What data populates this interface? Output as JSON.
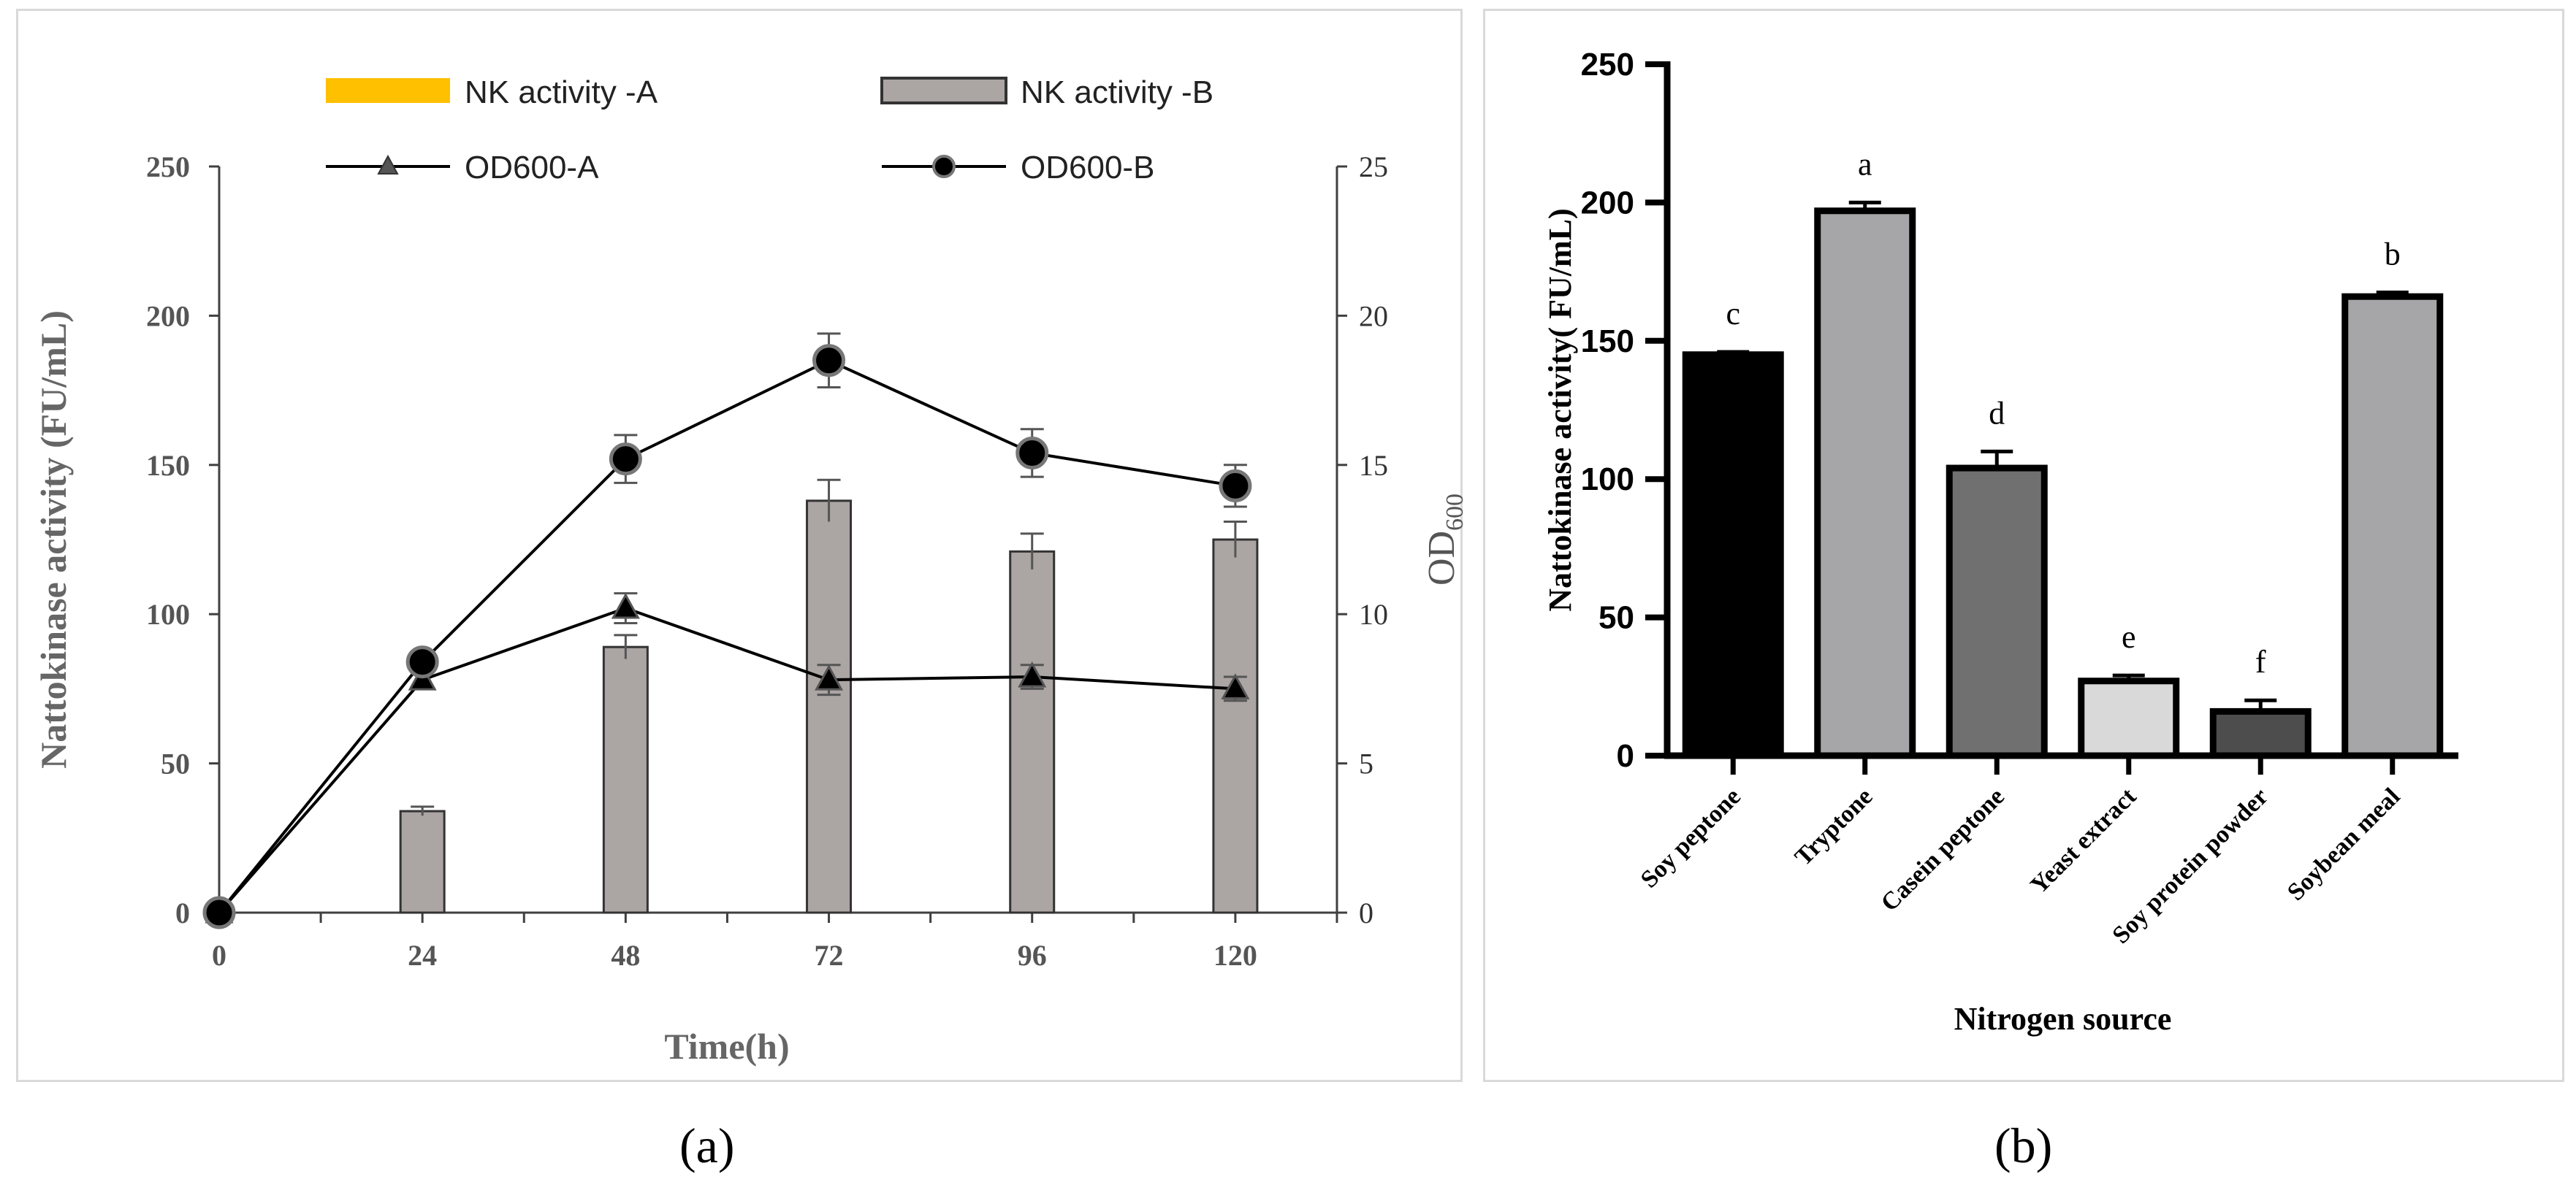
{
  "panels": {
    "a": "(a)",
    "b": "(b)"
  },
  "chart_data": [
    {
      "type": "bar+line",
      "panel": "a",
      "xlabel": "Time(h)",
      "ylabel_left": "Nattokinase activity (FU/mL)",
      "ylabel_right_main": "OD",
      "ylabel_right_sub": "600",
      "categories": [
        "0",
        "24",
        "48",
        "72",
        "96",
        "120"
      ],
      "x": [
        0,
        24,
        48,
        72,
        96,
        120
      ],
      "ylim_left": [
        0,
        250
      ],
      "yticks_left": [
        0,
        50,
        100,
        150,
        200,
        250
      ],
      "ylim_right": [
        0,
        25
      ],
      "yticks_right": [
        0,
        5,
        10,
        15,
        20,
        25
      ],
      "legend_placement": "top",
      "bar_series": [
        {
          "name": "NK activity -A",
          "color": "#FFC000",
          "values": [
            0,
            0,
            0,
            0,
            0,
            0
          ],
          "errors": [
            0,
            0,
            0,
            0,
            0,
            0
          ]
        },
        {
          "name": "NK activity -B",
          "color": "#ABA5A3",
          "values": [
            0,
            34,
            89,
            138,
            121,
            125
          ],
          "errors": [
            0,
            1.5,
            4,
            7,
            6,
            6
          ]
        }
      ],
      "line_series": [
        {
          "name": "OD600-A",
          "marker": "triangle",
          "values": [
            0,
            7.8,
            10.2,
            7.8,
            7.9,
            7.5
          ],
          "errors": [
            0,
            0.3,
            0.5,
            0.5,
            0.4,
            0.4
          ]
        },
        {
          "name": "OD600-B",
          "marker": "circle",
          "values": [
            0,
            8.4,
            15.2,
            18.5,
            15.4,
            14.3
          ],
          "errors": [
            0,
            0.3,
            0.8,
            0.9,
            0.8,
            0.7
          ]
        }
      ]
    },
    {
      "type": "bar",
      "panel": "b",
      "xlabel": "Nitrogen source",
      "ylabel": "Nattokinase activity( FU/mL)",
      "categories": [
        "Soy peptone",
        "Tryptone",
        "Casein peptone",
        "Yeast extract",
        "Soy protein powder",
        "Soybean meal"
      ],
      "values": [
        145,
        197,
        104,
        27,
        16,
        166
      ],
      "errors": [
        1,
        3,
        6,
        2,
        4,
        1.5
      ],
      "letters": [
        "c",
        "a",
        "d",
        "e",
        "f",
        "b"
      ],
      "colors": [
        "#000000",
        "#A6A6A8",
        "#707070",
        "#D9D9D9",
        "#4D4D4D",
        "#A6A6A8"
      ],
      "ylim": [
        0,
        250
      ],
      "yticks": [
        0,
        50,
        100,
        150,
        200,
        250
      ]
    }
  ]
}
